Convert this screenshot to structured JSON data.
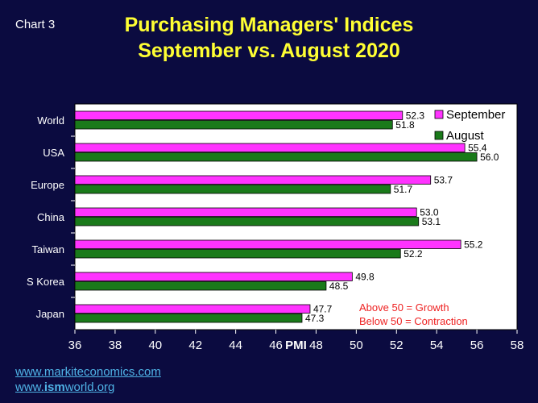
{
  "header": {
    "chart_label": "Chart 3",
    "title_line1": "Purchasing Managers' Indices",
    "title_line2": "September vs. August 2020"
  },
  "links": {
    "markit": "www.markiteconomics.com",
    "ism_prefix": "www.",
    "ism_bold": "ism",
    "ism_suffix": "world.org"
  },
  "colors": {
    "background": "#0b0b40",
    "plot_area": "#ffffff",
    "september": "#ff33ff",
    "august": "#1a7a1a",
    "title": "#ffff33",
    "note": "#ee2222",
    "link": "#4fb3e6"
  },
  "chart_data": {
    "type": "bar",
    "orientation": "horizontal",
    "title": "Purchasing Managers' Indices September vs. August 2020",
    "xlabel": "PMI",
    "ylabel": "",
    "categories": [
      "World",
      "USA",
      "Europe",
      "China",
      "Taiwan",
      "S Korea",
      "Japan"
    ],
    "series": [
      {
        "name": "September",
        "values": [
          52.3,
          55.4,
          53.7,
          53.0,
          55.2,
          49.8,
          47.7
        ],
        "labels": [
          "52.3",
          "55.4",
          "53.7",
          "53.0",
          "55.2",
          "49.8",
          "47.7"
        ]
      },
      {
        "name": "August",
        "values": [
          51.8,
          56.0,
          51.7,
          53.1,
          52.2,
          48.5,
          47.3
        ],
        "labels": [
          "51.8",
          "56.0",
          "51.7",
          "53.1",
          "52.2",
          "48.5",
          "47.3"
        ]
      }
    ],
    "xlim": [
      36,
      58
    ],
    "ticks": [
      "36",
      "38",
      "40",
      "42",
      "44",
      "46",
      "48",
      "50",
      "52",
      "54",
      "56",
      "58"
    ],
    "grid": false,
    "legend": "top-right",
    "annotations": [
      "Above 50 = Growth",
      "Below 50 = Contraction"
    ]
  }
}
